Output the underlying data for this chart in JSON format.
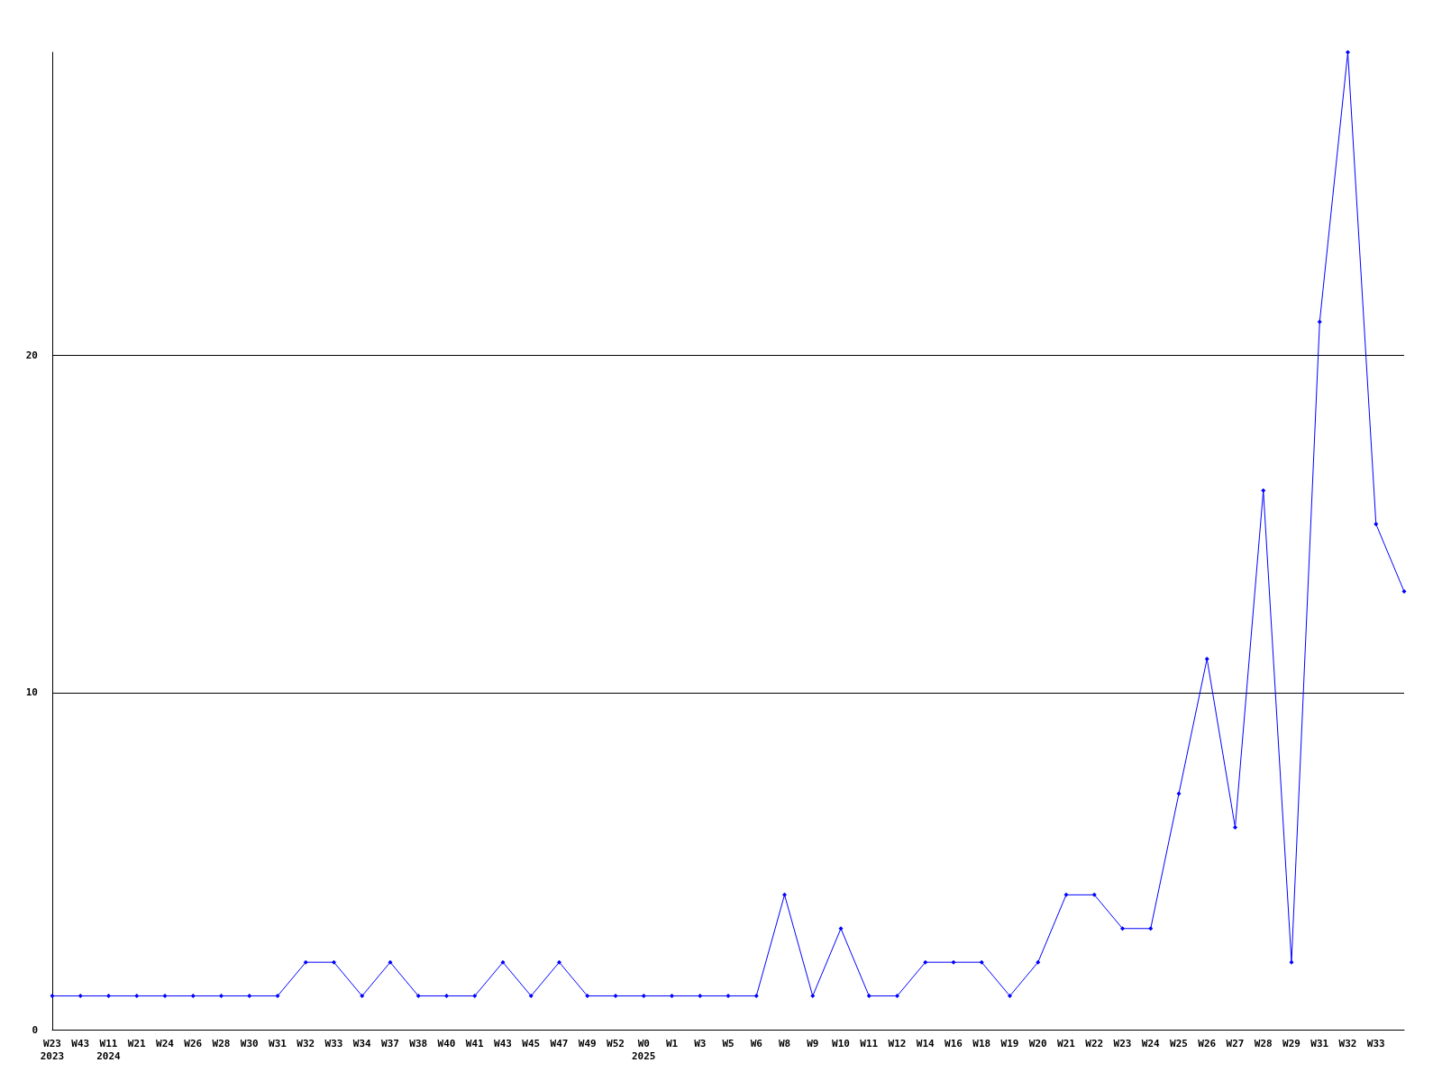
{
  "chart_data": {
    "type": "line",
    "categories": [
      "W23\n2023",
      "W43",
      "W11\n2024",
      "W21",
      "W24",
      "W26",
      "W28",
      "W30",
      "W31",
      "W32",
      "W33",
      "W34",
      "W37",
      "W38",
      "W40",
      "W41",
      "W43",
      "W45",
      "W47",
      "W49",
      "W52",
      "W0\n2025",
      "W1",
      "W3",
      "W5",
      "W6",
      "W8",
      "W9",
      "W10",
      "W11",
      "W12",
      "W14",
      "W16",
      "W18",
      "W19",
      "W20",
      "W21",
      "W22",
      "W23",
      "W24",
      "W25",
      "W26",
      "W27",
      "W28",
      "W29",
      "W31",
      "W32",
      "W33",
      null
    ],
    "series": [
      {
        "color": "#0000ff",
        "values": [
          1,
          1,
          1,
          1,
          1,
          1,
          1,
          1,
          1,
          2,
          2,
          1,
          2,
          1,
          1,
          1,
          2,
          1,
          2,
          1,
          1,
          1,
          1,
          1,
          1,
          1,
          4,
          1,
          3,
          1,
          1,
          2,
          2,
          2,
          1,
          2,
          4,
          4,
          3,
          3,
          7,
          11,
          6,
          16,
          2,
          21,
          29,
          15,
          13
        ]
      }
    ],
    "ylim": [
      0,
      29
    ],
    "yticks": [
      0,
      10,
      20
    ],
    "grid": "y",
    "marker": "diamond",
    "line_style": "solid"
  }
}
